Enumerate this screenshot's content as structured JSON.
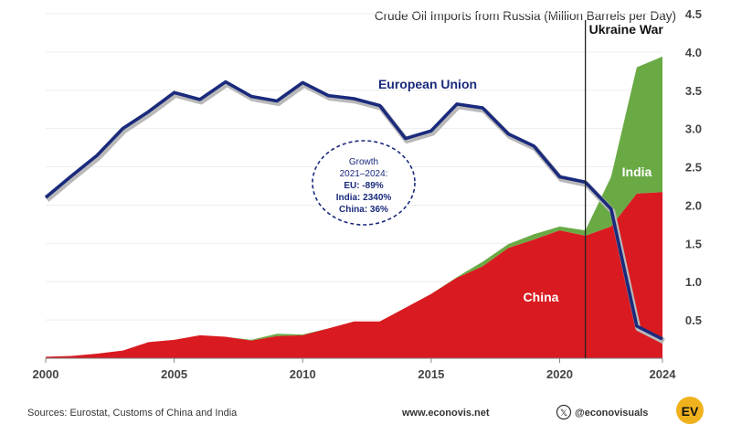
{
  "chart_data": {
    "type": "area",
    "title": "Crude Oil Imports from Russia (Million Barrels per Day)",
    "ylim": [
      0,
      4.5
    ],
    "xlim": [
      2000,
      2024
    ],
    "x_ticks": [
      "2000",
      "2005",
      "2010",
      "2015",
      "2020",
      "2024"
    ],
    "y_ticks": [
      "0.5",
      "1.0",
      "1.5",
      "2.0",
      "2.5",
      "3.0",
      "3.5",
      "4.0",
      "4.5"
    ],
    "x": [
      2000,
      2001,
      2002,
      2003,
      2004,
      2005,
      2006,
      2007,
      2008,
      2009,
      2010,
      2011,
      2012,
      2013,
      2014,
      2015,
      2016,
      2017,
      2018,
      2019,
      2020,
      2021,
      2022,
      2023,
      2024
    ],
    "series": [
      {
        "name": "European Union",
        "kind": "line",
        "color": "#1a2a7c",
        "values": [
          2.1,
          2.38,
          2.65,
          3.0,
          3.22,
          3.47,
          3.38,
          3.61,
          3.42,
          3.36,
          3.6,
          3.43,
          3.39,
          3.3,
          2.87,
          2.97,
          3.32,
          3.27,
          2.93,
          2.77,
          2.37,
          2.3,
          1.95,
          0.42,
          0.25
        ]
      },
      {
        "name": "China",
        "kind": "area",
        "color": "#d91a20",
        "values": [
          0.02,
          0.03,
          0.06,
          0.1,
          0.21,
          0.24,
          0.3,
          0.28,
          0.23,
          0.29,
          0.3,
          0.39,
          0.48,
          0.48,
          0.66,
          0.84,
          1.05,
          1.2,
          1.44,
          1.55,
          1.67,
          1.6,
          1.72,
          2.15,
          2.17
        ]
      },
      {
        "name": "India",
        "kind": "area",
        "color": "#6aaa45",
        "values": [
          0,
          0,
          0,
          0,
          0,
          0,
          0,
          0,
          0.01,
          0.03,
          0.01,
          0,
          0,
          0,
          0,
          0,
          0.01,
          0.06,
          0.05,
          0.07,
          0.05,
          0.07,
          0.65,
          1.65,
          1.77
        ]
      }
    ],
    "annotations": {
      "war_label": "Ukraine War",
      "war_year": 2021,
      "growth": [
        "Growth",
        "2021–2024:",
        "EU: -89%",
        "India: 2340%",
        "China: 36%"
      ]
    }
  },
  "footer": {
    "sources": "Sources: Eurostat, Customs of China and India",
    "website": "www.econovis.net",
    "x_logo": "𝕏",
    "social": "@econovisuals",
    "brand_mark": "EV"
  }
}
